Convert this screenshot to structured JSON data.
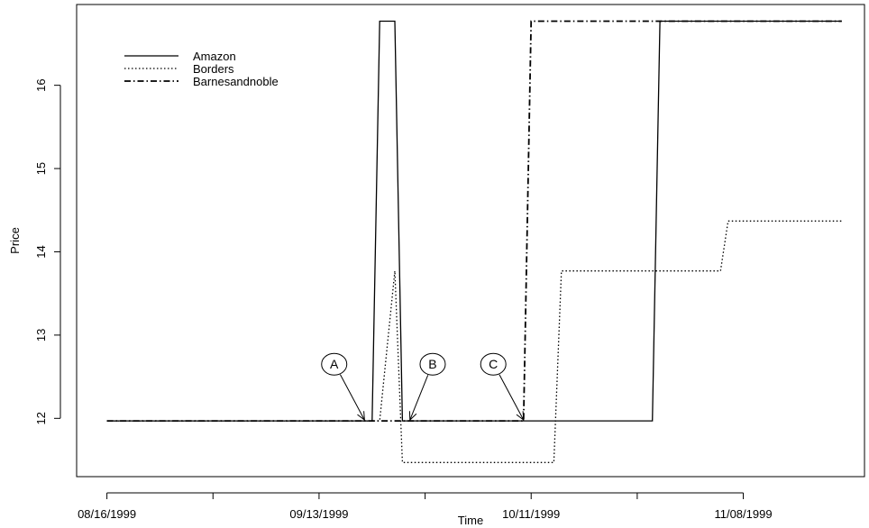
{
  "chart_data": {
    "type": "line",
    "title": "",
    "xlabel": "Time",
    "ylabel": "Price",
    "x_ticks": [
      {
        "date": "1999-08-16",
        "label": "08/16/1999"
      },
      {
        "date": "1999-08-30",
        "label": ""
      },
      {
        "date": "1999-09-13",
        "label": "09/13/1999"
      },
      {
        "date": "1999-09-27",
        "label": ""
      },
      {
        "date": "1999-10-11",
        "label": "10/11/1999"
      },
      {
        "date": "1999-10-25",
        "label": ""
      },
      {
        "date": "1999-11-08",
        "label": "11/08/1999"
      }
    ],
    "y_ticks": [
      {
        "value": 12,
        "label": "12"
      },
      {
        "value": 13,
        "label": "13"
      },
      {
        "value": 14,
        "label": "14"
      },
      {
        "value": 15,
        "label": "15"
      },
      {
        "value": 16,
        "label": "16"
      }
    ],
    "xlim": [
      "1999-08-12",
      "1999-11-24"
    ],
    "ylim": [
      11.3,
      16.97
    ],
    "grid": false,
    "legend": "top-left",
    "series": [
      {
        "name": "Amazon",
        "style": "solid",
        "points": [
          [
            "1999-08-16",
            11.97
          ],
          [
            "1999-09-20",
            11.97
          ],
          [
            "1999-09-21",
            16.77
          ],
          [
            "1999-09-23",
            16.77
          ],
          [
            "1999-09-24",
            11.97
          ],
          [
            "1999-10-27",
            11.97
          ],
          [
            "1999-10-28",
            16.77
          ],
          [
            "1999-11-21",
            16.77
          ]
        ]
      },
      {
        "name": "Borders",
        "style": "dotted",
        "points": [
          [
            "1999-08-16",
            11.97
          ],
          [
            "1999-09-21",
            11.97
          ],
          [
            "1999-09-23",
            13.77
          ],
          [
            "1999-09-24",
            11.47
          ],
          [
            "1999-10-14",
            11.47
          ],
          [
            "1999-10-15",
            13.77
          ],
          [
            "1999-11-05",
            13.77
          ],
          [
            "1999-11-06",
            14.37
          ],
          [
            "1999-11-21",
            14.37
          ]
        ]
      },
      {
        "name": "Barnesandnoble",
        "style": "dashdot",
        "points": [
          [
            "1999-08-16",
            11.97
          ],
          [
            "1999-10-10",
            11.97
          ],
          [
            "1999-10-11",
            16.77
          ],
          [
            "1999-11-21",
            16.77
          ]
        ]
      }
    ],
    "annotations": [
      {
        "label": "A",
        "date": "1999-09-19",
        "value": 11.97,
        "label_date": "1999-09-15",
        "label_value": 12.65
      },
      {
        "label": "B",
        "date": "1999-09-25",
        "value": 11.97,
        "label_date": "1999-09-28",
        "label_value": 12.65
      },
      {
        "label": "C",
        "date": "1999-10-10",
        "value": 11.97,
        "label_date": "1999-10-06",
        "label_value": 12.65
      }
    ]
  }
}
